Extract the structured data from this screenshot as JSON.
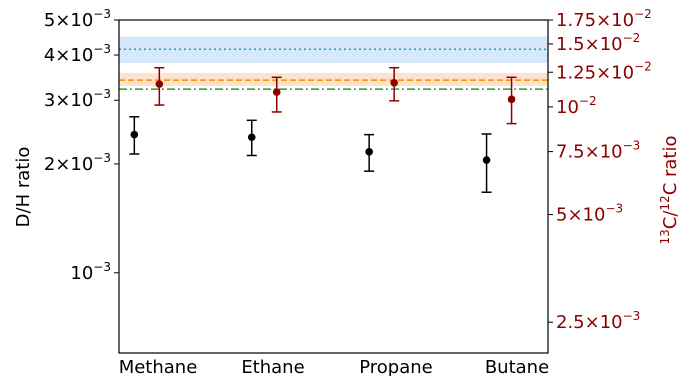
{
  "chart_data": {
    "type": "scatter",
    "categories": [
      "Methane",
      "Ethane",
      "Propane",
      "Butane"
    ],
    "left_axis": {
      "label": "D/H ratio",
      "range": [
        0.0006,
        0.005
      ],
      "ticks": [
        {
          "value": 0.001,
          "mantissa": "",
          "exp": "−3",
          "text": "10"
        },
        {
          "value": 0.002,
          "mantissa": "2×",
          "exp": "−3",
          "text": "10"
        },
        {
          "value": 0.003,
          "mantissa": "3×",
          "exp": "−3",
          "text": "10"
        },
        {
          "value": 0.004,
          "mantissa": "4×",
          "exp": "−3",
          "text": "10"
        },
        {
          "value": 0.005,
          "mantissa": "5×",
          "exp": "−3",
          "text": "10"
        }
      ],
      "color": "#000000"
    },
    "right_axis": {
      "label_parts": [
        "13",
        "C/",
        "12",
        "C ratio"
      ],
      "range": [
        0.00205,
        0.0175
      ],
      "ticks": [
        {
          "value": 0.0025,
          "mantissa": "2.5×",
          "exp": "−3",
          "text": "10"
        },
        {
          "value": 0.005,
          "mantissa": "5×",
          "exp": "−3",
          "text": "10"
        },
        {
          "value": 0.0075,
          "mantissa": "7.5×",
          "exp": "−3",
          "text": "10"
        },
        {
          "value": 0.01,
          "mantissa": "",
          "exp": "−2",
          "text": "10"
        },
        {
          "value": 0.0125,
          "mantissa": "1.25×",
          "exp": "−2",
          "text": "10"
        },
        {
          "value": 0.015,
          "mantissa": "1.5×",
          "exp": "−2",
          "text": "10"
        },
        {
          "value": 0.0175,
          "mantissa": "1.75×",
          "exp": "−2",
          "text": "10"
        }
      ],
      "color": "#8b0000"
    },
    "series": [
      {
        "axis": "left",
        "color": "#000000",
        "values": [
          0.00241,
          0.00237,
          0.00216,
          0.00205
        ],
        "err_low": [
          0.00213,
          0.00211,
          0.00191,
          0.00167
        ],
        "err_high": [
          0.0027,
          0.00264,
          0.00241,
          0.00242
        ]
      },
      {
        "axis": "right",
        "color": "#8b0000",
        "values": [
          0.01158,
          0.011,
          0.01168,
          0.0105
        ],
        "err_low": [
          0.01012,
          0.00968,
          0.0104,
          0.00898
        ],
        "err_high": [
          0.01287,
          0.0121,
          0.01287,
          0.0121
        ]
      }
    ],
    "reference_lines": [
      {
        "axis": "left",
        "value": 0.00415,
        "band": [
          0.0038,
          0.0045
        ],
        "line_color": "#1f9bd0",
        "band_color": "#d6e9fb",
        "style": "dotted"
      },
      {
        "axis": "left",
        "value": 0.00341,
        "band": [
          0.00328,
          0.00357
        ],
        "line_color": "#ff8c00",
        "band_color": "#fde3cb",
        "style": "dashed"
      },
      {
        "axis": "left",
        "value": 0.00322,
        "band": null,
        "line_color": "#2ca02c",
        "band_color": null,
        "style": "dashdot"
      }
    ],
    "scale": "log-y",
    "grid": false,
    "legend": "none"
  }
}
